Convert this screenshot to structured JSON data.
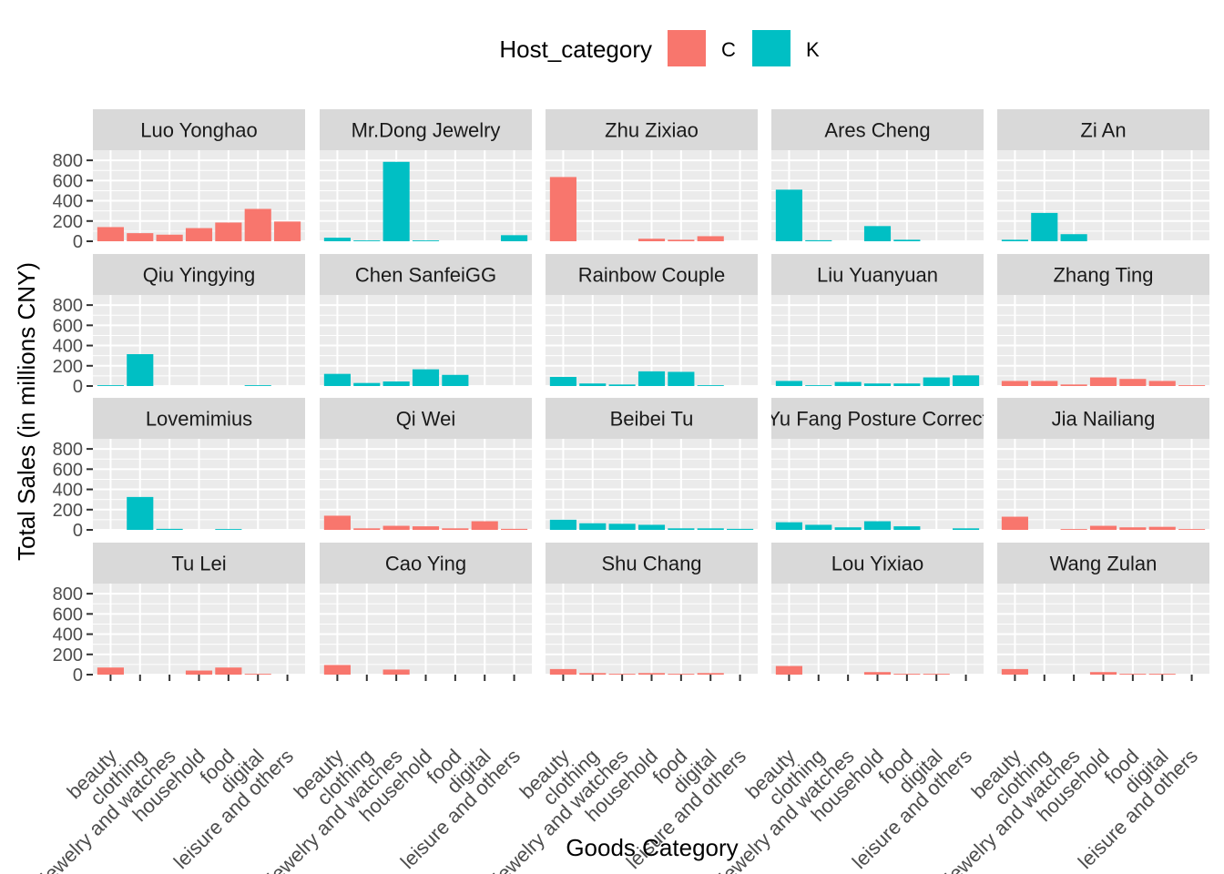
{
  "chart_data": {
    "type": "bar",
    "title": "",
    "xlabel": "Goods Category",
    "ylabel": "Total Sales (in millions CNY)",
    "categories": [
      "beauty",
      "clothing",
      "jewelry and watches",
      "household",
      "food",
      "digital",
      "leisure and others"
    ],
    "ylim": [
      0,
      900
    ],
    "y_ticks": [
      0,
      200,
      400,
      600,
      800
    ],
    "grid": true,
    "legend": {
      "title": "Host_category",
      "position": "top",
      "items": [
        {
          "name": "C",
          "color": "#F8766D"
        },
        {
          "name": "K",
          "color": "#00BFC4"
        }
      ]
    },
    "facets": [
      {
        "name": "Luo Yonghao",
        "host_category": "C",
        "values": [
          140,
          80,
          65,
          130,
          185,
          320,
          195
        ]
      },
      {
        "name": "Mr.Dong Jewelry",
        "host_category": "K",
        "values": [
          35,
          8,
          785,
          8,
          0,
          0,
          60
        ]
      },
      {
        "name": "Zhu Zixiao",
        "host_category": "C",
        "values": [
          635,
          0,
          0,
          25,
          15,
          50,
          0
        ]
      },
      {
        "name": "Ares Cheng",
        "host_category": "K",
        "values": [
          510,
          10,
          0,
          150,
          15,
          0,
          0
        ]
      },
      {
        "name": "Zi An",
        "host_category": "K",
        "values": [
          15,
          280,
          70,
          0,
          0,
          0,
          0
        ]
      },
      {
        "name": "Qiu Yingying",
        "host_category": "K",
        "values": [
          8,
          315,
          0,
          0,
          0,
          8,
          0
        ]
      },
      {
        "name": "Chen SanfeiGG",
        "host_category": "K",
        "values": [
          120,
          30,
          45,
          165,
          110,
          0,
          0
        ]
      },
      {
        "name": "Rainbow Couple",
        "host_category": "K",
        "values": [
          90,
          25,
          15,
          145,
          140,
          8,
          0
        ]
      },
      {
        "name": "Liu Yuanyuan",
        "host_category": "K",
        "values": [
          50,
          8,
          40,
          25,
          25,
          85,
          105
        ]
      },
      {
        "name": "Zhang Ting",
        "host_category": "C",
        "values": [
          50,
          50,
          15,
          85,
          70,
          50,
          8
        ]
      },
      {
        "name": "Lovemimius",
        "host_category": "K",
        "values": [
          0,
          325,
          10,
          0,
          8,
          0,
          0
        ]
      },
      {
        "name": "Qi Wei",
        "host_category": "C",
        "values": [
          140,
          15,
          40,
          35,
          15,
          85,
          10
        ]
      },
      {
        "name": "Beibei Tu",
        "host_category": "K",
        "values": [
          100,
          65,
          60,
          50,
          15,
          15,
          10
        ]
      },
      {
        "name": "Yu Fang Posture Correct",
        "host_category": "K",
        "values": [
          75,
          50,
          25,
          85,
          35,
          0,
          15
        ]
      },
      {
        "name": "Jia Nailiang",
        "host_category": "C",
        "values": [
          130,
          0,
          8,
          40,
          25,
          30,
          8
        ]
      },
      {
        "name": "Tu Lei",
        "host_category": "C",
        "values": [
          70,
          0,
          0,
          40,
          70,
          8,
          0
        ]
      },
      {
        "name": "Cao Ying",
        "host_category": "C",
        "values": [
          95,
          0,
          50,
          0,
          0,
          0,
          0
        ]
      },
      {
        "name": "Shu Chang",
        "host_category": "C",
        "values": [
          55,
          15,
          8,
          15,
          8,
          15,
          0
        ]
      },
      {
        "name": "Lou Yixiao",
        "host_category": "C",
        "values": [
          85,
          0,
          0,
          25,
          8,
          8,
          0
        ]
      },
      {
        "name": "Wang Zulan",
        "host_category": "C",
        "values": [
          55,
          0,
          0,
          25,
          8,
          8,
          0
        ]
      }
    ]
  }
}
